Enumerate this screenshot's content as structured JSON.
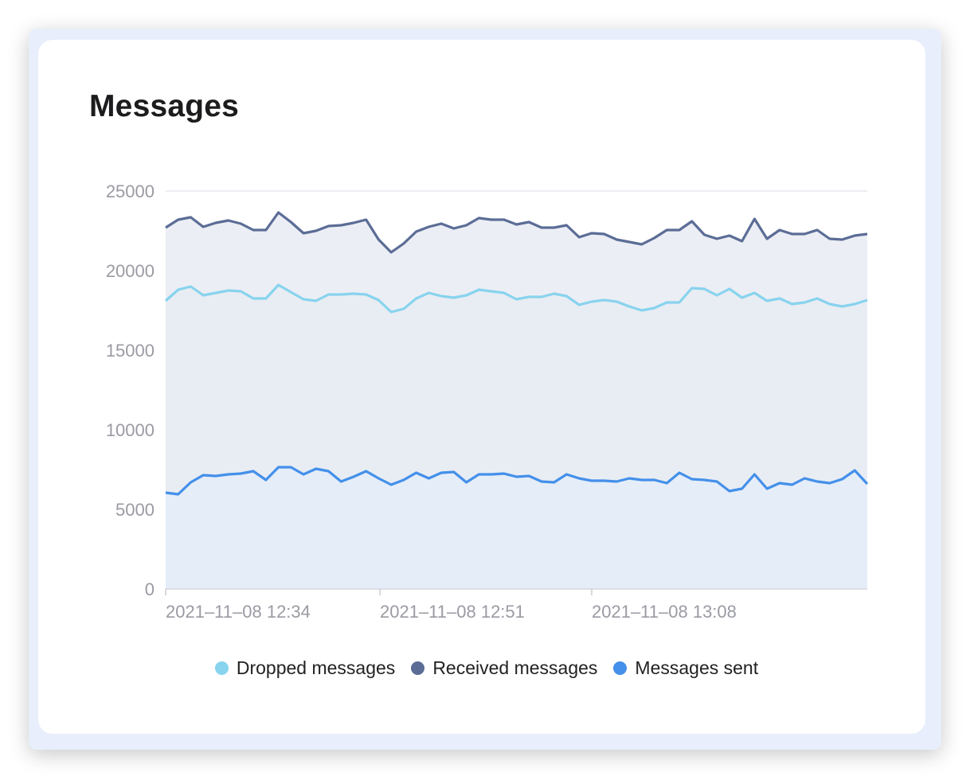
{
  "card": {
    "title": "Messages"
  },
  "chart_data": {
    "type": "area",
    "title": "Messages",
    "xlabel": "",
    "ylabel": "",
    "ylim": [
      0,
      25000
    ],
    "y_ticks": [
      0,
      5000,
      10000,
      15000,
      20000,
      25000
    ],
    "x_tick_labels": [
      "2021–11–08 12:34",
      "2021–11–08 12:51",
      "2021–11–08 13:08"
    ],
    "grid": true,
    "legend_position": "bottom",
    "series": [
      {
        "name": "Dropped messages",
        "color": "#88d3ee",
        "values": [
          18100,
          18800,
          19000,
          18450,
          18600,
          18750,
          18700,
          18250,
          18250,
          19100,
          18650,
          18200,
          18100,
          18500,
          18500,
          18550,
          18500,
          18150,
          17400,
          17600,
          18250,
          18600,
          18400,
          18300,
          18450,
          18800,
          18700,
          18600,
          18200,
          18350,
          18350,
          18550,
          18400,
          17850,
          18050,
          18150,
          18050,
          17750,
          17500,
          17650,
          18000,
          18000,
          18900,
          18850,
          18450,
          18850,
          18300,
          18600,
          18100,
          18250,
          17900,
          18000,
          18250,
          17900,
          17750,
          17900,
          18150
        ]
      },
      {
        "name": "Received messages",
        "color": "#5b6d96",
        "values": [
          22700,
          23200,
          23350,
          22750,
          23000,
          23150,
          22950,
          22550,
          22550,
          23650,
          23050,
          22350,
          22500,
          22800,
          22850,
          23000,
          23200,
          21950,
          21150,
          21700,
          22450,
          22750,
          22950,
          22650,
          22850,
          23300,
          23200,
          23200,
          22900,
          23050,
          22700,
          22700,
          22850,
          22100,
          22350,
          22300,
          21950,
          21800,
          21650,
          22050,
          22550,
          22550,
          23100,
          22250,
          22000,
          22200,
          21850,
          23250,
          22000,
          22550,
          22300,
          22300,
          22550,
          22000,
          21950,
          22200,
          22300
        ]
      },
      {
        "name": "Messages sent",
        "color": "#4490ea",
        "values": [
          6050,
          5950,
          6700,
          7150,
          7100,
          7200,
          7250,
          7400,
          6850,
          7650,
          7650,
          7200,
          7550,
          7400,
          6750,
          7050,
          7400,
          6950,
          6550,
          6850,
          7300,
          6950,
          7300,
          7350,
          6700,
          7200,
          7200,
          7250,
          7050,
          7100,
          6750,
          6700,
          7200,
          6950,
          6800,
          6800,
          6750,
          6950,
          6850,
          6850,
          6650,
          7300,
          6900,
          6850,
          6750,
          6150,
          6300,
          7200,
          6300,
          6650,
          6550,
          6950,
          6750,
          6650,
          6900,
          7450,
          6600
        ]
      }
    ]
  }
}
